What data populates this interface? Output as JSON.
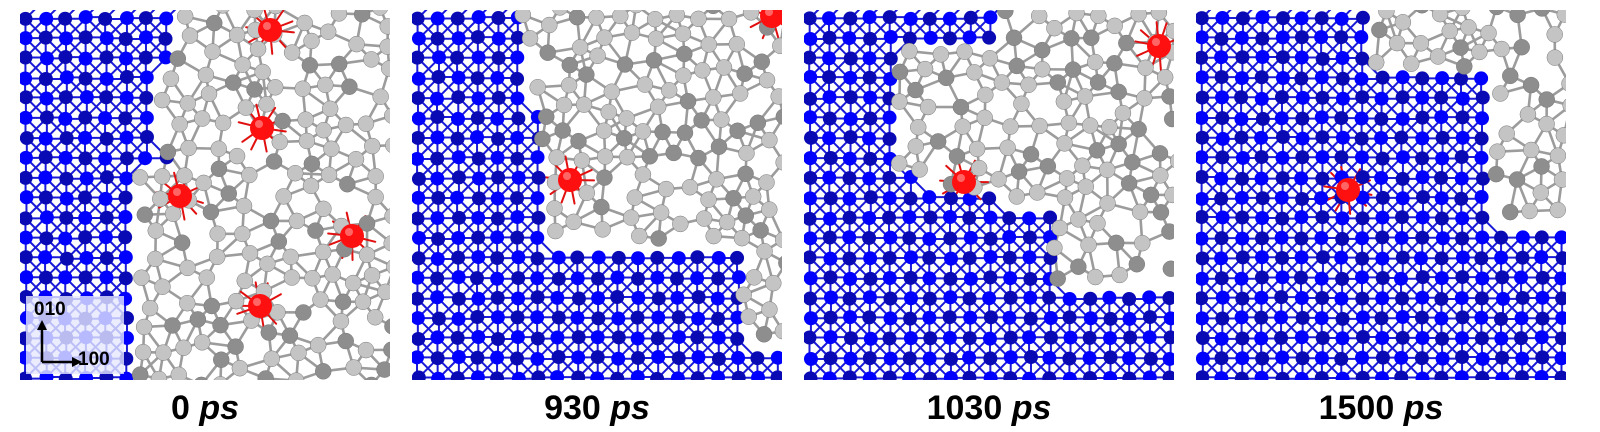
{
  "panels": [
    {
      "time": "0",
      "unit": "ps"
    },
    {
      "time": "930",
      "unit": "ps"
    },
    {
      "time": "1030",
      "unit": "ps"
    },
    {
      "time": "1500",
      "unit": "ps"
    }
  ],
  "axes": {
    "vertical": "010",
    "horizontal": "100"
  },
  "colors": {
    "crystal_atom": "#0000ff",
    "crystal_atom_dark": "#0a0ab4",
    "crystal_bond": "#1a1ad8",
    "amorphous_atom": "#c4c4c4",
    "amorphous_atom_dark": "#8e8e8e",
    "amorphous_bond": "#9c9c9c",
    "highlight_atom": "#ff1010"
  }
}
